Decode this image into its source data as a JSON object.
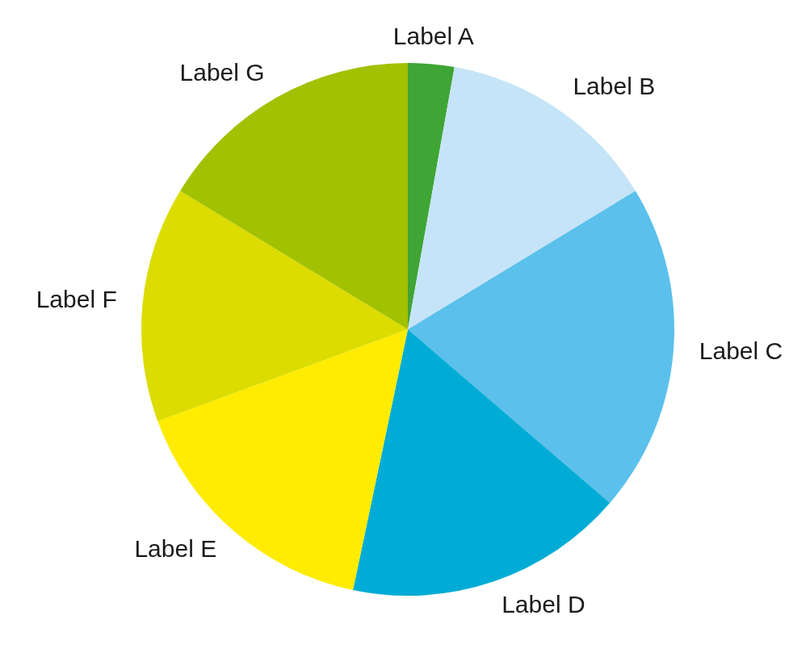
{
  "chart_data": {
    "type": "pie",
    "categories": [
      "Label A",
      "Label B",
      "Label C",
      "Label D",
      "Label E",
      "Label F",
      "Label G"
    ],
    "values": [
      2.8,
      13.5,
      20.0,
      17.0,
      16.1,
      14.3,
      16.3
    ],
    "colors": [
      "#3fa535",
      "#c5e4f7",
      "#5bc0eb",
      "#00acd5",
      "#ffec00",
      "#dcdc00",
      "#a2c100"
    ]
  }
}
